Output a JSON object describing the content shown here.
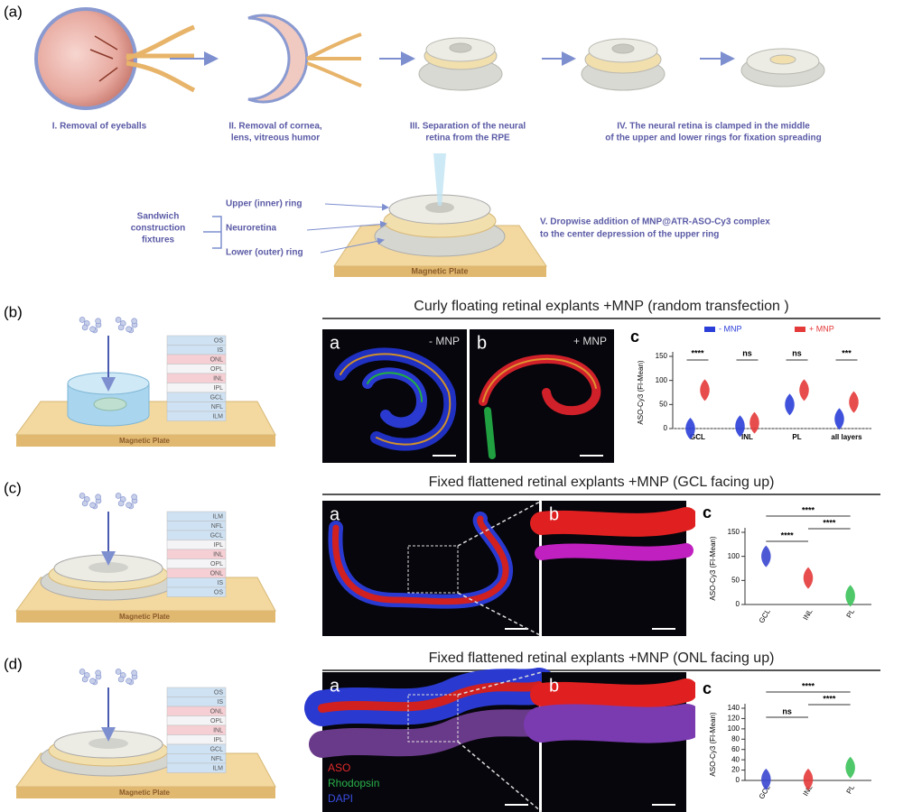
{
  "label": "(a)",
  "steps": [
    [
      "I. Removal of eyeballs"
    ],
    [
      "II. Removal of cornea,",
      "lens, vitreous humor"
    ],
    [
      "III. Separation of the neural",
      "retina from the RPE"
    ],
    [
      "IV. The neural retina is clamped in the middle",
      "of the upper and lower rings for fixation spreading"
    ]
  ],
  "sandwich": [
    "Sandwich",
    "construction",
    "fixtures"
  ],
  "rings": [
    "Upper (inner) ring",
    "Neuroretina",
    "Lower (outer) ring"
  ],
  "step_v": [
    "V. Dropwise addition of MNP@ATR-ASO-Cy3 complex",
    "to the center depression of the upper ring"
  ],
  "plate": "Magnetic Plate",
  "rows": [
    {
      "label": "(b)",
      "title": "Curly floating retinal explants +MNP (random transfection )",
      "plate": "Magnetic Plate",
      "layers": [
        "OS",
        "IS",
        "ONL",
        "OPL",
        "INL",
        "IPL",
        "GCL",
        "NFL",
        "ILM"
      ],
      "images": [
        {
          "letter": "a",
          "tag": "- MNP"
        },
        {
          "letter": "b",
          "tag": "+ MNP"
        }
      ],
      "plot": {
        "letter": "c",
        "ylabel": "ASO-Cy3 (FI-Mean)",
        "ylim": [
          0,
          150
        ],
        "yticks": [
          0,
          50,
          100,
          150
        ],
        "categories": [
          "GCL",
          "INL",
          "PL",
          "all layers"
        ],
        "series": [
          {
            "name": "- MNP",
            "color": "#2b3fd8",
            "values": [
              0,
              5,
              50,
              20
            ]
          },
          {
            "name": "+ MNP",
            "color": "#e43a3a",
            "values": [
              80,
              12,
              80,
              55
            ]
          }
        ],
        "significance": [
          "****",
          "ns",
          "ns",
          "***"
        ]
      }
    },
    {
      "label": "(c)",
      "title": "Fixed flattened retinal explants +MNP (GCL facing up)",
      "plate": "Magnetic Plate",
      "layers": [
        "ILM",
        "NFL",
        "GCL",
        "IPL",
        "INL",
        "OPL",
        "ONL",
        "IS",
        "OS"
      ],
      "images": [
        {
          "letter": "a"
        },
        {
          "letter": "b"
        }
      ],
      "plot": {
        "letter": "c",
        "ylabel": "ASO-Cy3 (FI-Mean)",
        "ylim": [
          0,
          150
        ],
        "yticks": [
          0,
          50,
          100,
          150
        ],
        "categories": [
          "GCL",
          "INL",
          "PL"
        ],
        "values": [
          100,
          55,
          18
        ],
        "colors": [
          "#3a46d0",
          "#e43a3a",
          "#3cc25a"
        ],
        "significance": [
          "****",
          "****",
          "****"
        ]
      }
    },
    {
      "label": "(d)",
      "title": "Fixed flattened retinal explants +MNP  (ONL facing up)",
      "plate": "Magnetic Plate",
      "layers": [
        "OS",
        "IS",
        "ONL",
        "OPL",
        "INL",
        "IPL",
        "GCL",
        "NFL",
        "ILM"
      ],
      "images": [
        {
          "letter": "a",
          "legend": [
            {
              "name": "ASO",
              "color": "#e02a2a"
            },
            {
              "name": "Rhodopsin",
              "color": "#2ab04a"
            },
            {
              "name": "DAPI",
              "color": "#3a4ee0"
            }
          ]
        },
        {
          "letter": "b"
        }
      ],
      "plot": {
        "letter": "c",
        "ylabel": "ASO-Cy3 (FI-Mean)",
        "ylim": [
          0,
          140
        ],
        "yticks": [
          0,
          20,
          40,
          60,
          80,
          100,
          120,
          140
        ],
        "categories": [
          "GCL",
          "INL",
          "PL"
        ],
        "values": [
          2,
          2,
          25
        ],
        "colors": [
          "#3a46d0",
          "#e43a3a",
          "#3cc25a"
        ],
        "significance": [
          "ns",
          "****",
          "****"
        ]
      }
    }
  ]
}
